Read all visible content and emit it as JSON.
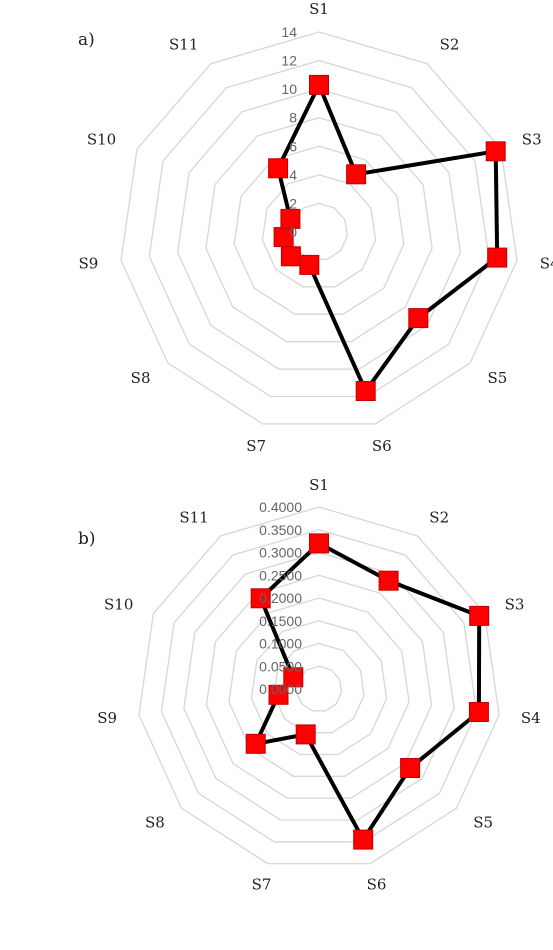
{
  "chart_data": [
    {
      "type": "radar",
      "panel_label": "a)",
      "categories": [
        "S1",
        "S2",
        "S3",
        "S4",
        "S5",
        "S6",
        "S7",
        "S8",
        "S9",
        "S10",
        "S11"
      ],
      "tick_labels": [
        "0",
        "2",
        "4",
        "6",
        "8",
        "10",
        "12",
        "14"
      ],
      "rlim": [
        0,
        14
      ],
      "grid": true,
      "series": [
        {
          "values": [
            10.3,
            4.8,
            13.6,
            12.6,
            9.2,
            11.6,
            2.4,
            2.6,
            2.5,
            2.2,
            5.3
          ],
          "line_color": "#000000",
          "marker_color": "#ff0000"
        }
      ]
    },
    {
      "type": "radar",
      "panel_label": "b)",
      "categories": [
        "S1",
        "S2",
        "S3",
        "S4",
        "S5",
        "S6",
        "S7",
        "S8",
        "S9",
        "S10",
        "S11"
      ],
      "tick_labels": [
        "0.0000",
        "0.0500",
        "0.1000",
        "0.1500",
        "0.2000",
        "0.2500",
        "0.3000",
        "0.3500",
        "0.4000"
      ],
      "rlim": [
        0,
        0.4
      ],
      "grid": true,
      "series": [
        {
          "values": [
            0.32,
            0.283,
            0.387,
            0.355,
            0.265,
            0.345,
            0.104,
            0.184,
            0.09,
            0.062,
            0.237
          ],
          "line_color": "#000000",
          "marker_color": "#ff0000"
        }
      ]
    }
  ]
}
